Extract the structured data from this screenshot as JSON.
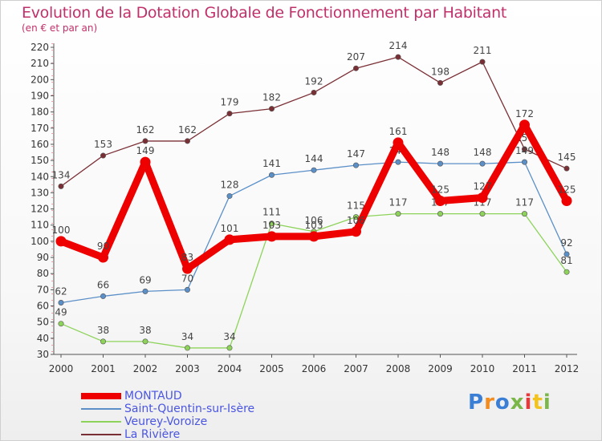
{
  "title": "Evolution de la Dotation Globale de Fonctionnement par Habitant",
  "subtitle": "(en € et par an)",
  "brand": {
    "text": "Proxiti",
    "colors": [
      "#3a7fd5",
      "#f28c1f",
      "#3a7fd5",
      "#7ab648",
      "#e33b3b",
      "#f2c21f",
      "#7ab648"
    ]
  },
  "chart_data": {
    "type": "line",
    "title": "Evolution de la Dotation Globale de Fonctionnement par Habitant",
    "subtitle": "(en € et par an)",
    "xlabel": "",
    "ylabel": "",
    "categories": [
      "2000",
      "2001",
      "2002",
      "2003",
      "2004",
      "2005",
      "2006",
      "2007",
      "2008",
      "2009",
      "2010",
      "2011",
      "2012"
    ],
    "ylim": [
      30,
      220
    ],
    "yticks": [
      30,
      40,
      50,
      60,
      70,
      80,
      90,
      100,
      110,
      120,
      130,
      140,
      150,
      160,
      170,
      180,
      190,
      200,
      210,
      220
    ],
    "grid": false,
    "legend": "bottom-left",
    "series": [
      {
        "name": "La Rivière",
        "color": "#7a2f35",
        "emphasis": false,
        "values": [
          134,
          153,
          162,
          162,
          179,
          182,
          192,
          207,
          214,
          198,
          211,
          157,
          145
        ],
        "labels": [
          "134",
          "153",
          "162",
          "162",
          "179",
          "182",
          "192",
          "207",
          "214",
          "198",
          "211",
          "157",
          "145"
        ]
      },
      {
        "name": "Saint-Quentin-sur-Isère",
        "color": "#5b8fc8",
        "emphasis": false,
        "values": [
          62,
          66,
          69,
          70,
          128,
          141,
          144,
          147,
          149,
          148,
          148,
          149,
          92
        ],
        "labels": [
          "62",
          "66",
          "69",
          "70",
          "128",
          "141",
          "144",
          "147",
          "149",
          "148",
          "148",
          "149",
          "92"
        ]
      },
      {
        "name": "Veurey-Voroize",
        "color": "#8dd35a",
        "emphasis": false,
        "values": [
          49,
          38,
          38,
          34,
          34,
          111,
          106,
          115,
          117,
          117,
          117,
          117,
          81
        ],
        "labels": [
          "49",
          "38",
          "38",
          "34",
          "34",
          "111",
          "106",
          "115",
          "117",
          "117",
          "117",
          "117",
          "81"
        ]
      },
      {
        "name": "MONTAUD",
        "color": "#ee0000",
        "emphasis": true,
        "values": [
          100,
          90,
          149,
          83,
          101,
          103,
          103,
          106,
          161,
          125,
          127,
          172,
          125
        ],
        "labels": [
          "100",
          "90",
          "149",
          "83",
          "101",
          "103",
          "103",
          "106",
          "161",
          "125",
          "127",
          "172",
          "125"
        ]
      }
    ],
    "legend_order": [
      "MONTAUD",
      "Saint-Quentin-sur-Isère",
      "Veurey-Voroize",
      "La Rivière"
    ]
  }
}
